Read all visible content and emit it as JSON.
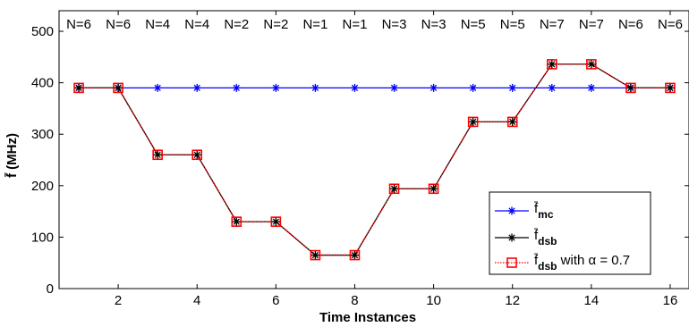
{
  "chart_data": {
    "type": "line",
    "xlabel": "Time Instances",
    "ylabel": "f̄ (MHz)",
    "xlim": [
      0.5,
      16.5
    ],
    "ylim": [
      0,
      540
    ],
    "xticks": [
      2,
      4,
      6,
      8,
      10,
      12,
      14,
      16
    ],
    "yticks": [
      0,
      100,
      200,
      300,
      400,
      500
    ],
    "x": [
      1,
      2,
      3,
      4,
      5,
      6,
      7,
      8,
      9,
      10,
      11,
      12,
      13,
      14,
      15,
      16
    ],
    "annotations": [
      "N=6",
      "N=6",
      "N=4",
      "N=4",
      "N=2",
      "N=2",
      "N=1",
      "N=1",
      "N=3",
      "N=3",
      "N=5",
      "N=5",
      "N=7",
      "N=7",
      "N=6",
      "N=6"
    ],
    "series": [
      {
        "name": "f̄mc",
        "color": "#0000ff",
        "marker": "asterisk",
        "values": [
          390,
          390,
          390,
          390,
          390,
          390,
          390,
          390,
          390,
          390,
          390,
          390,
          390,
          390,
          390,
          390
        ]
      },
      {
        "name": "f̄dsb",
        "color": "#000000",
        "marker": "asterisk",
        "values": [
          390,
          390,
          260,
          260,
          130,
          130,
          65,
          65,
          194,
          194,
          324,
          324,
          436,
          436,
          390,
          390
        ]
      },
      {
        "name": "f̄dsb with α = 0.7",
        "color": "#ff0000",
        "marker": "square",
        "values": [
          390,
          390,
          260,
          260,
          130,
          130,
          65,
          65,
          194,
          194,
          324,
          324,
          436,
          436,
          390,
          390
        ]
      }
    ],
    "legend": {
      "placement": "bottom-right",
      "entries": [
        {
          "main": "f̄",
          "sub": "mc",
          "rest": ""
        },
        {
          "main": "f̄",
          "sub": "dsb",
          "rest": ""
        },
        {
          "main": "f̄",
          "sub": "dsb",
          "rest": " with α = 0.7"
        }
      ]
    },
    "grid": false
  }
}
